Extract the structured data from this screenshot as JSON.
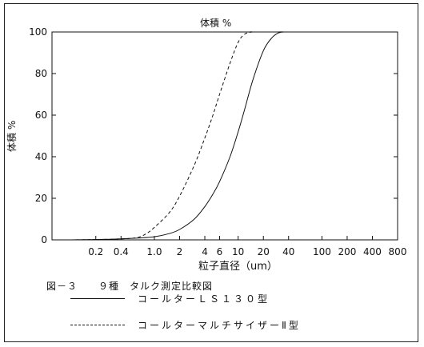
{
  "chart_data": {
    "type": "line",
    "title": "体積 %",
    "ylabel": "体積 %",
    "xlabel": "粒子直径（um）",
    "x_scale": "log",
    "xlim": [
      0.06,
      800
    ],
    "ylim": [
      0,
      100
    ],
    "x_ticks": [
      0.2,
      0.4,
      1.0,
      2,
      4,
      6,
      10,
      20,
      40,
      100,
      200,
      400,
      800
    ],
    "x_tick_labels": [
      "0.2",
      "0.4",
      "1.0",
      "2",
      "4",
      "6",
      "10",
      "20",
      "40",
      "100",
      "200",
      "400",
      "800"
    ],
    "y_ticks": [
      0,
      20,
      40,
      60,
      80,
      100
    ],
    "y_tick_labels": [
      "0",
      "20",
      "40",
      "60",
      "80",
      "100"
    ],
    "series": [
      {
        "name": "コールターＬＳ１３０型",
        "style": "solid",
        "x": [
          0.1,
          0.3,
          0.6,
          1.0,
          1.5,
          2,
          3,
          4,
          5,
          6,
          8,
          10,
          12,
          15,
          20,
          25,
          30,
          35,
          40,
          800
        ],
        "y": [
          0,
          0.3,
          0.8,
          1.5,
          3,
          5,
          10,
          16,
          22,
          28,
          40,
          52,
          63,
          77,
          91,
          97,
          99.5,
          100,
          100,
          100
        ]
      },
      {
        "name": "コールターマルチサイザーⅡ型",
        "style": "dashed",
        "x": [
          0.1,
          0.3,
          0.6,
          0.8,
          1.0,
          1.5,
          2,
          3,
          4,
          5,
          6,
          8,
          10,
          12,
          15,
          20,
          800
        ],
        "y": [
          0,
          0.3,
          1,
          3,
          6,
          13,
          21,
          36,
          49,
          60,
          70,
          85,
          95,
          99,
          100,
          100,
          100
        ]
      }
    ]
  },
  "caption": "図－３　　９種　タルク測定比較図",
  "legend": {
    "solid_label": "コールターＬＳ１３０型",
    "dashed_label": "コールターマルチサイザーⅡ型"
  }
}
